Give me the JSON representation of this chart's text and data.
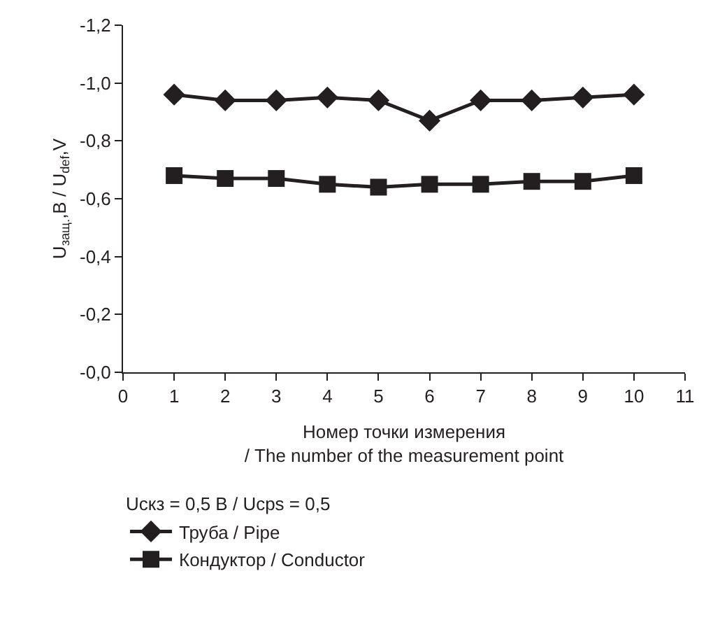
{
  "chart_data": {
    "type": "line",
    "xlabel": "Номер точки измерения\n/ The number of the measurement point",
    "ylabel": "U$_{защ.}$,В / U$_{def}$,V",
    "legend_title": "Uскз = 0,5 В / Ucps = 0,5",
    "x": [
      1,
      2,
      3,
      4,
      5,
      6,
      7,
      8,
      9,
      10
    ],
    "series": [
      {
        "name": "Труба / Pipe",
        "color": "#231f20",
        "marker": "diamond",
        "values": [
          -0.96,
          -0.94,
          -0.94,
          -0.95,
          -0.94,
          -0.87,
          -0.94,
          -0.94,
          -0.95,
          -0.96
        ]
      },
      {
        "name": "Кондуктор / Conductor",
        "color": "#231f20",
        "marker": "square",
        "values": [
          -0.68,
          -0.67,
          -0.67,
          -0.65,
          -0.64,
          -0.65,
          -0.65,
          -0.66,
          -0.66,
          -0.68
        ]
      }
    ],
    "xlim": [
      0,
      11
    ],
    "xticks": [
      0,
      1,
      2,
      3,
      4,
      5,
      6,
      7,
      8,
      9,
      10,
      11
    ],
    "ylim": [
      0,
      -1.2
    ],
    "yticks": [
      {
        "value": 0,
        "label": "-0,0"
      },
      {
        "value": -0.2,
        "label": "-0,2"
      },
      {
        "value": -0.4,
        "label": "-0,4"
      },
      {
        "value": -0.6,
        "label": "-0,6"
      },
      {
        "value": -0.8,
        "label": "-0,8"
      },
      {
        "value": -1.0,
        "label": "-1,0"
      },
      {
        "value": -1.2,
        "label": "-1,2"
      }
    ],
    "legend": "bottom",
    "line_style": "solid"
  }
}
